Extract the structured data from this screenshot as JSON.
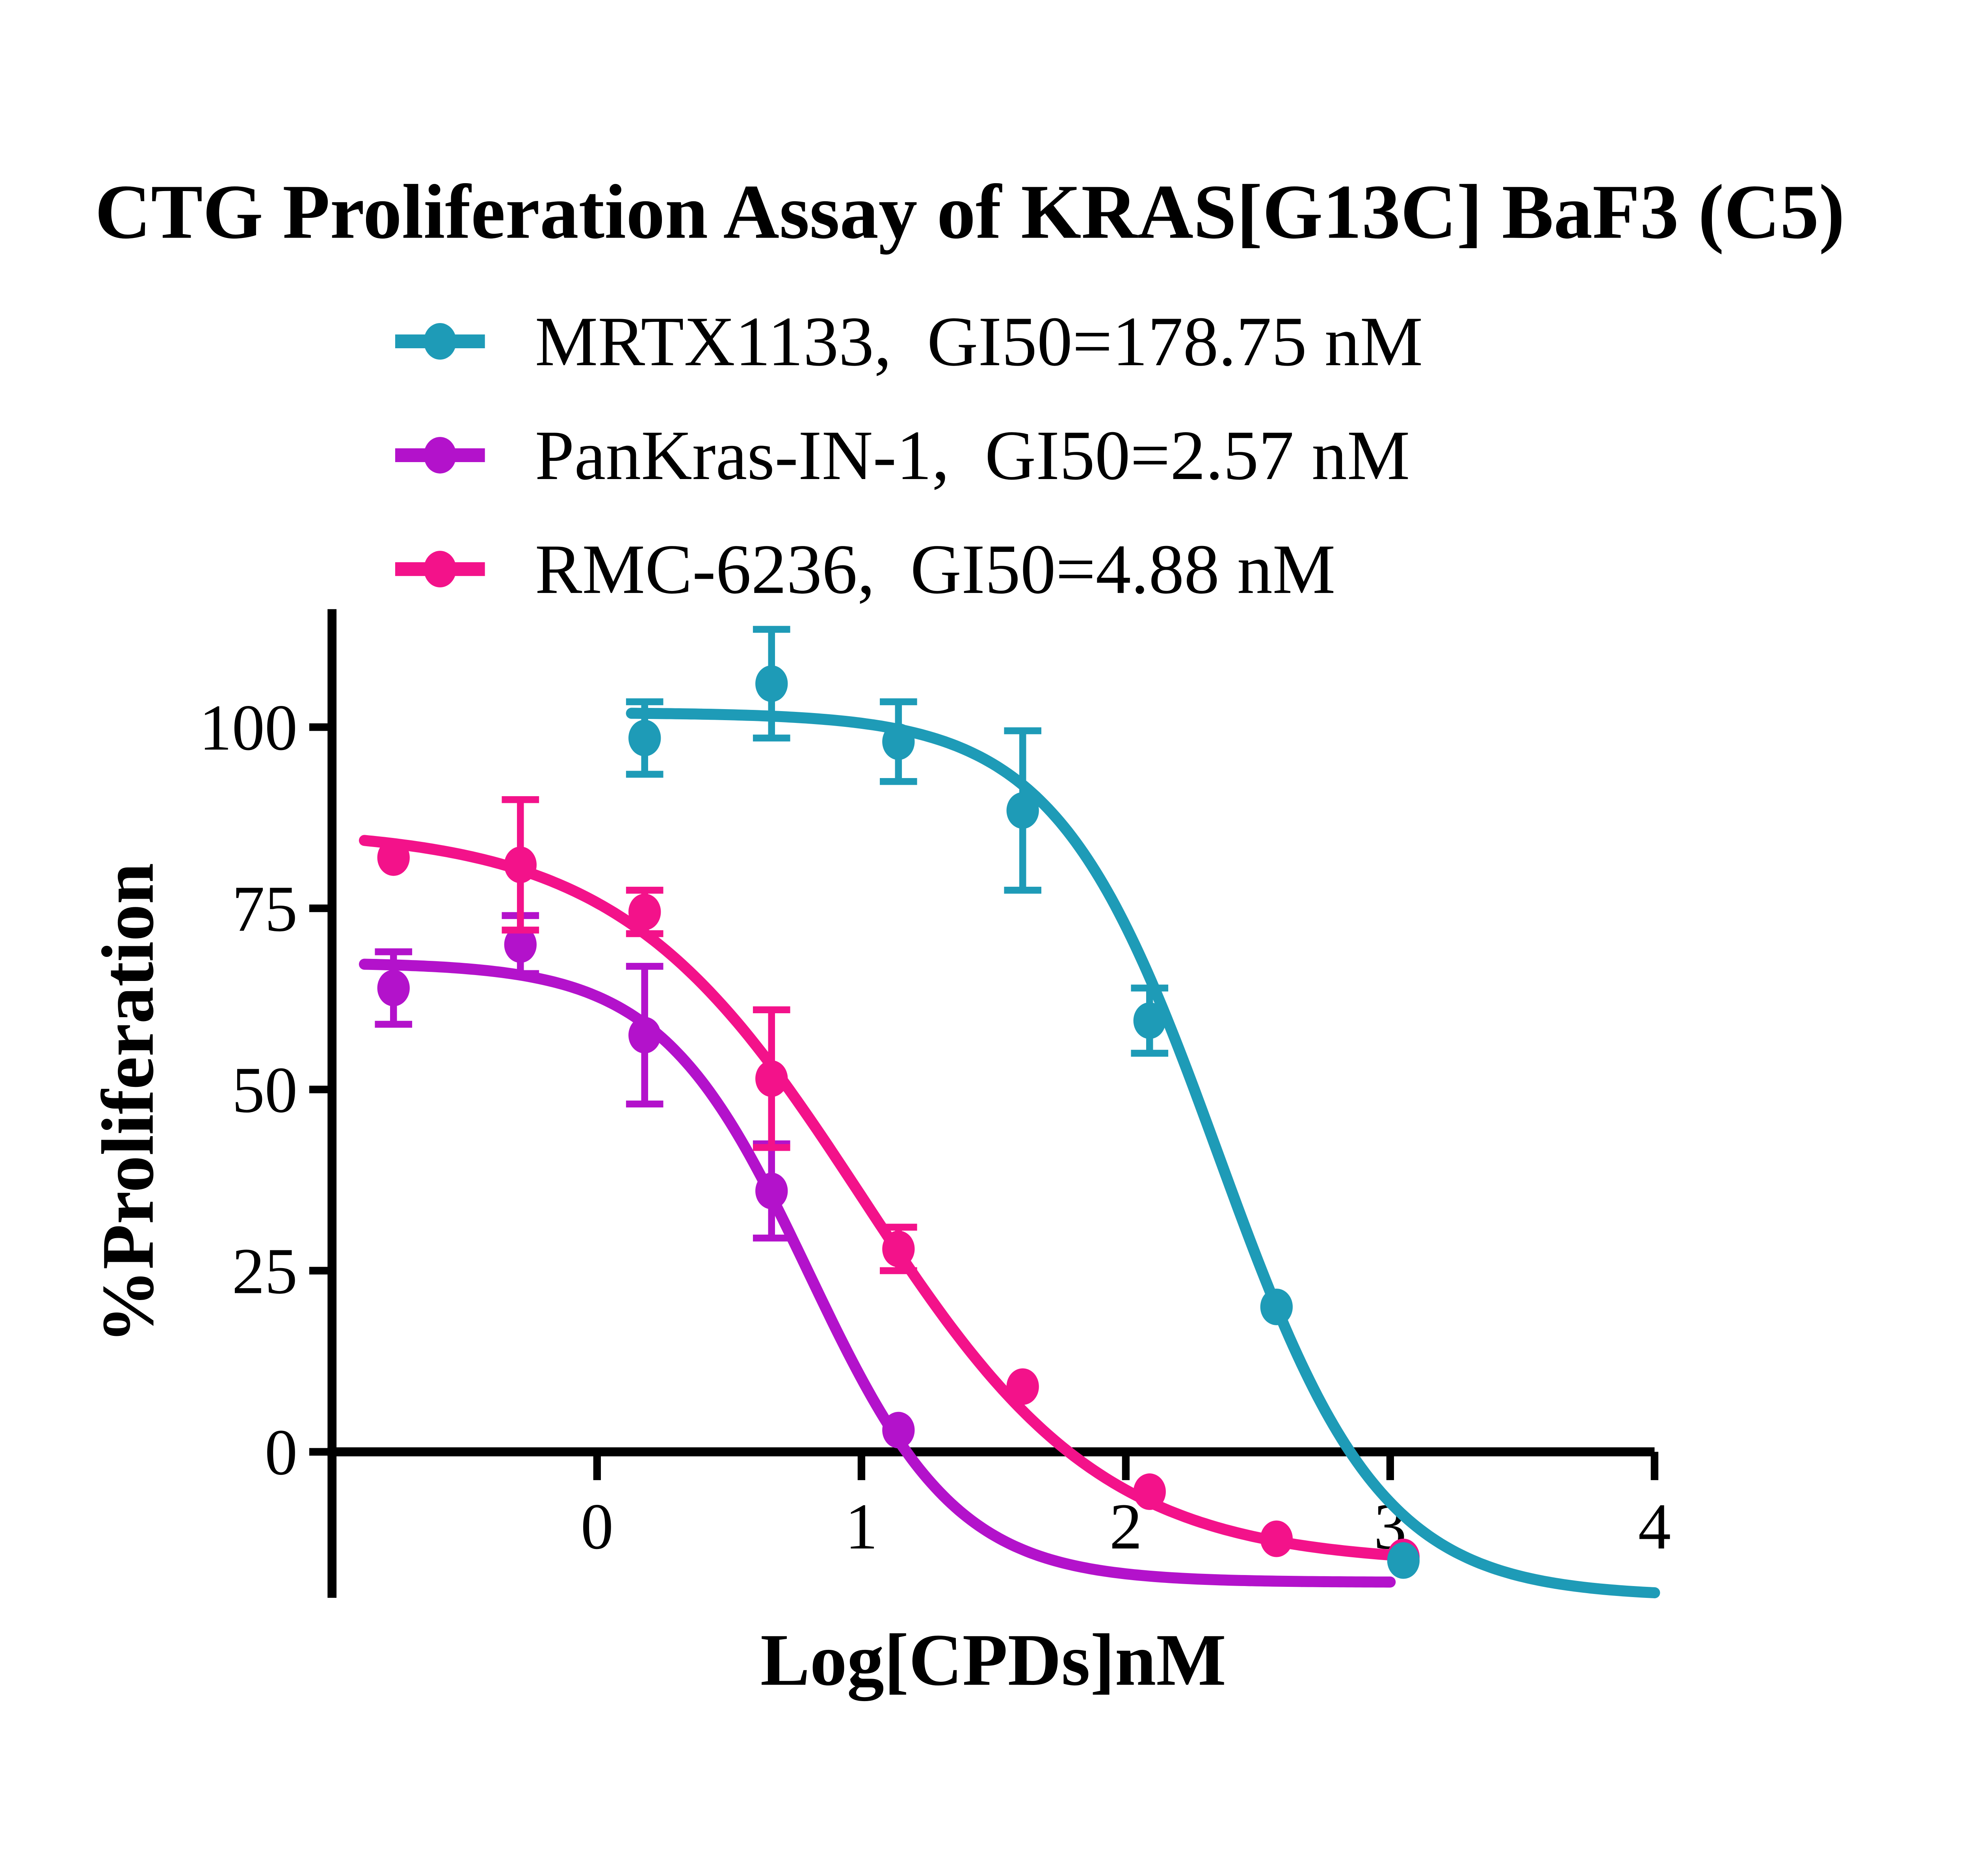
{
  "title": "CTG Proliferation Assay of KRAS[G13C] BaF3 (C5)",
  "axis": {
    "x": {
      "label": "Log[CPDs]nM",
      "ticks": [
        "0",
        "1",
        "2",
        "3",
        "4"
      ],
      "tick_values": [
        0,
        1,
        2,
        3,
        4
      ],
      "min": -1,
      "max": 4
    },
    "y": {
      "label": "%Proliferation",
      "ticks": [
        "0",
        "25",
        "50",
        "75",
        "100"
      ],
      "tick_values": [
        0,
        25,
        50,
        75,
        100
      ]
    }
  },
  "legend": [
    {
      "label": "MRTX1133,  GI50=178.75 nM",
      "series": "MRTX1133",
      "color": "#1E9BB7",
      "marker": "circle-on-line"
    },
    {
      "label": "PanKras-IN-1,  GI50=2.57 nM",
      "series": "PanKras-IN-1",
      "color": "#B312CB",
      "marker": "circle-on-line"
    },
    {
      "label": "RMC-6236,  GI50=4.88 nM",
      "series": "RMC-6236",
      "color": "#F3128A",
      "marker": "circle-on-line"
    }
  ],
  "chart_data": {
    "type": "line",
    "title": "CTG Proliferation Assay of KRAS[G13C] BaF3 (C5)",
    "xlabel": "Log[CPDs]nM",
    "ylabel": "%Proliferation",
    "x_range": [
      -1,
      4
    ],
    "y_tick_values": [
      0,
      25,
      50,
      75,
      100
    ],
    "grid": false,
    "legend_position": "top-left",
    "series": [
      {
        "name": "MRTX1133",
        "gi50_label": "GI50=178.75 nM",
        "gi50_nM": 178.75,
        "color": "#1E9BB7",
        "points": [
          {
            "x": 0.18,
            "y": 98.5,
            "err": 5.0
          },
          {
            "x": 0.66,
            "y": 106.0,
            "err": 7.5
          },
          {
            "x": 1.14,
            "y": 98.0,
            "err": 5.5
          },
          {
            "x": 1.61,
            "y": 88.5,
            "err": 11.0
          },
          {
            "x": 2.09,
            "y": 59.5,
            "err": 4.5
          },
          {
            "x": 2.57,
            "y": 20.0,
            "err": 0
          },
          {
            "x": 3.05,
            "y": -15.0,
            "err": 0
          }
        ],
        "fit_curve": {
          "top": 102,
          "bottom": -20,
          "logIC50": 2.35,
          "hill": 1.42,
          "x_start": 0.13,
          "x_end": 4.0
        }
      },
      {
        "name": "PanKras-IN-1",
        "gi50_label": "GI50=2.57 nM",
        "gi50_nM": 2.57,
        "color": "#B312CB",
        "points": [
          {
            "x": -0.77,
            "y": 64.0,
            "err": 5.0
          },
          {
            "x": -0.29,
            "y": 70.0,
            "err": 4.0
          },
          {
            "x": 0.18,
            "y": 57.5,
            "err": 9.5
          },
          {
            "x": 0.66,
            "y": 36.0,
            "err": 6.5
          },
          {
            "x": 1.14,
            "y": 3.0,
            "err": 0
          }
        ],
        "fit_curve": {
          "top": 67.5,
          "bottom": -18,
          "logIC50": 0.8,
          "hill": 1.55,
          "x_start": -0.88,
          "x_end": 3.0
        }
      },
      {
        "name": "RMC-6236",
        "gi50_label": "GI50=4.88 nM",
        "gi50_nM": 4.88,
        "color": "#F3128A",
        "points": [
          {
            "x": -0.77,
            "y": 82.0,
            "err": 0
          },
          {
            "x": -0.29,
            "y": 81.0,
            "err": 9.0
          },
          {
            "x": 0.18,
            "y": 74.5,
            "err": 3.0
          },
          {
            "x": 0.66,
            "y": 51.5,
            "err": 9.5
          },
          {
            "x": 1.14,
            "y": 28.0,
            "err": 3.0
          },
          {
            "x": 1.61,
            "y": 9.0,
            "err": 0
          },
          {
            "x": 2.09,
            "y": -5.5,
            "err": 0
          },
          {
            "x": 2.57,
            "y": -12.0,
            "err": 0
          },
          {
            "x": 3.05,
            "y": -14.5,
            "err": 0
          }
        ],
        "fit_curve": {
          "top": 86,
          "bottom": -15.5,
          "logIC50": 1.0,
          "hill": 0.95,
          "x_start": -0.88,
          "x_end": 3.06
        }
      }
    ]
  }
}
